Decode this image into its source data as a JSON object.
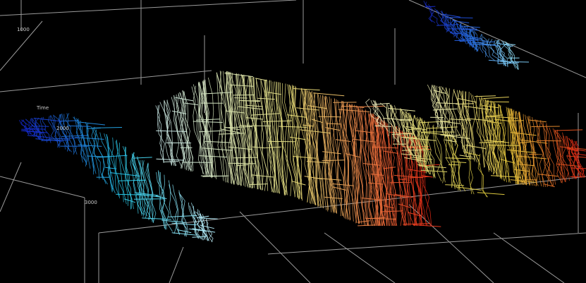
{
  "axis": {
    "title": "Time",
    "ticks": [
      "1000",
      "2000",
      "3000"
    ]
  }
}
